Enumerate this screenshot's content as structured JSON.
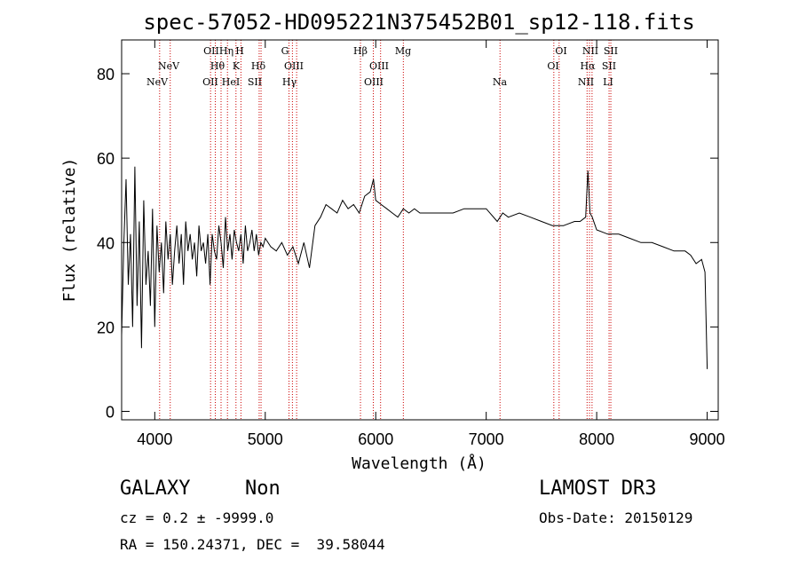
{
  "chart_data": {
    "type": "line",
    "title": "spec-57052-HD095221N375452B01_sp12-118.fits",
    "xlabel": "Wavelength (Å)",
    "ylabel": "Flux (relative)",
    "xlim": [
      3700,
      9100
    ],
    "ylim": [
      -2,
      88
    ],
    "x_ticks": [
      4000,
      5000,
      6000,
      7000,
      8000,
      9000
    ],
    "y_ticks": [
      0,
      20,
      40,
      60,
      80
    ],
    "grid": false,
    "series": [
      {
        "color": "#000000",
        "x": [
          3700,
          3720,
          3740,
          3760,
          3780,
          3800,
          3820,
          3840,
          3860,
          3880,
          3900,
          3920,
          3940,
          3960,
          3980,
          4000,
          4020,
          4040,
          4060,
          4080,
          4100,
          4120,
          4140,
          4160,
          4180,
          4200,
          4220,
          4240,
          4260,
          4280,
          4300,
          4320,
          4340,
          4360,
          4380,
          4400,
          4420,
          4440,
          4460,
          4480,
          4500,
          4520,
          4540,
          4560,
          4580,
          4600,
          4620,
          4640,
          4660,
          4680,
          4700,
          4720,
          4740,
          4760,
          4780,
          4800,
          4820,
          4840,
          4860,
          4880,
          4900,
          4920,
          4940,
          4960,
          4980,
          5000,
          5050,
          5100,
          5150,
          5200,
          5250,
          5300,
          5350,
          5400,
          5450,
          5500,
          5550,
          5600,
          5650,
          5700,
          5750,
          5800,
          5850,
          5900,
          5950,
          5980,
          6000,
          6050,
          6100,
          6150,
          6200,
          6250,
          6300,
          6350,
          6400,
          6500,
          6600,
          6700,
          6800,
          6900,
          7000,
          7100,
          7150,
          7200,
          7300,
          7400,
          7500,
          7600,
          7700,
          7800,
          7850,
          7900,
          7920,
          7940,
          7960,
          8000,
          8100,
          8200,
          8300,
          8400,
          8500,
          8600,
          8700,
          8800,
          8850,
          8900,
          8950,
          8980,
          9000
        ],
        "values": [
          18,
          40,
          55,
          30,
          42,
          20,
          58,
          25,
          45,
          15,
          50,
          30,
          38,
          25,
          48,
          20,
          44,
          33,
          40,
          28,
          45,
          36,
          42,
          30,
          38,
          44,
          35,
          42,
          30,
          45,
          38,
          42,
          36,
          40,
          32,
          44,
          38,
          40,
          35,
          42,
          30,
          42,
          38,
          36,
          44,
          40,
          34,
          46,
          38,
          42,
          36,
          43,
          40,
          38,
          42,
          35,
          44,
          38,
          40,
          43,
          38,
          42,
          37,
          40,
          39,
          41,
          39,
          38,
          40,
          37,
          39,
          35,
          40,
          34,
          44,
          46,
          49,
          48,
          47,
          50,
          48,
          49,
          47,
          51,
          52,
          55,
          50,
          49,
          48,
          47,
          46,
          48,
          47,
          48,
          47,
          47,
          47,
          47,
          48,
          48,
          48,
          45,
          47,
          46,
          47,
          46,
          45,
          44,
          44,
          45,
          45,
          46,
          57,
          47,
          46,
          43,
          42,
          42,
          41,
          40,
          40,
          39,
          38,
          38,
          37,
          35,
          36,
          33,
          10
        ]
      }
    ],
    "lines": [
      {
        "wavelength": 4044,
        "top": "",
        "bottom": "NeV"
      },
      {
        "wavelength": 4140,
        "top": "NeV",
        "bottom": ""
      },
      {
        "wavelength": 4505,
        "top": "OII",
        "bottom": "OII"
      },
      {
        "wavelength": 4548,
        "top": "",
        "bottom": ""
      },
      {
        "wavelength": 4600,
        "top": "Hη",
        "bottom": "Hθ"
      },
      {
        "wavelength": 4658,
        "top": "",
        "bottom": "HeI"
      },
      {
        "wavelength": 4735,
        "top": "K",
        "bottom": ""
      },
      {
        "wavelength": 4780,
        "top": "H",
        "bottom": ""
      },
      {
        "wavelength": 4945,
        "top": "",
        "bottom": "SII"
      },
      {
        "wavelength": 4962,
        "top": "Hδ",
        "bottom": ""
      },
      {
        "wavelength": 5215,
        "top": "G",
        "bottom": ""
      },
      {
        "wavelength": 5246,
        "top": "",
        "bottom": "Hγ"
      },
      {
        "wavelength": 5284,
        "top": "OIII",
        "bottom": ""
      },
      {
        "wavelength": 5862,
        "top": "Hβ",
        "bottom": ""
      },
      {
        "wavelength": 5978,
        "top": "",
        "bottom": "OIII"
      },
      {
        "wavelength": 6044,
        "top": "OIII",
        "bottom": ""
      },
      {
        "wavelength": 6250,
        "top": "Mg",
        "bottom": ""
      },
      {
        "wavelength": 7125,
        "top": "",
        "bottom": "Na"
      },
      {
        "wavelength": 7612,
        "top": "OI",
        "bottom": ""
      },
      {
        "wavelength": 7660,
        "top": "OI",
        "bottom": ""
      },
      {
        "wavelength": 7913,
        "top": "NII",
        "bottom": "NII"
      },
      {
        "wavelength": 7935,
        "top": "Hα",
        "bottom": ""
      },
      {
        "wavelength": 7958,
        "top": "",
        "bottom": ""
      },
      {
        "wavelength": 8112,
        "top": "SII",
        "bottom": "LI"
      },
      {
        "wavelength": 8128,
        "top": "SII",
        "bottom": ""
      }
    ],
    "line_labels": {
      "row1": [
        "OII",
        "Hη",
        "H",
        "G",
        "Hβ",
        "Mg",
        "OI",
        "NII",
        "SII"
      ],
      "row2": [
        "NeV",
        "Hθ",
        "K",
        "Hδ",
        "OIII",
        "OIII",
        "OI",
        "Hα",
        "SII"
      ],
      "row3": [
        "NeV",
        "OII",
        "HeI",
        "SII",
        "Hγ",
        "OIII",
        "Na",
        "NII",
        "LI"
      ]
    },
    "line_color": "#cc0000"
  },
  "info": {
    "object_class": "GALAXY",
    "subclass": "Non",
    "cz": "cz = 0.2 ± -9999.0",
    "coords": "RA = 150.24371, DEC =  39.58044",
    "survey": "LAMOST DR3",
    "obs_date": "Obs-Date: 20150129"
  }
}
